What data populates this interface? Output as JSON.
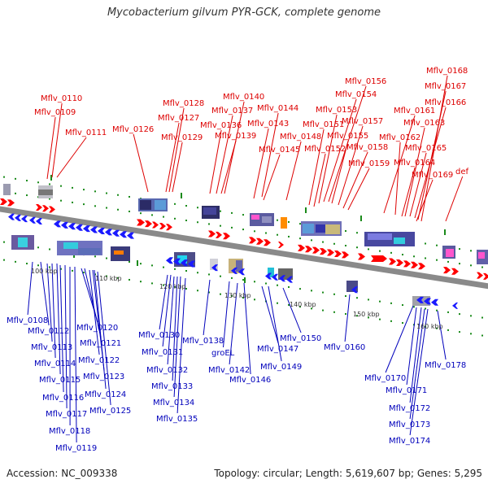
{
  "title": "Mycobacterium gilvum PYR-GCK, complete genome",
  "accession_label": "Accession: NC_009338",
  "summary": "Topology: circular; Length: 5,619,607 bp; Genes: 5,295",
  "colors": {
    "forward_label": "#dd0000",
    "reverse_label": "#0000bb",
    "forward_gene": "#ff0000",
    "reverse_gene": "#1a1aff",
    "backbone": "#8a8a8a",
    "tick": "#1a8a1a"
  },
  "kbp_ticks": [
    "100 kbp",
    "110 kbp",
    "120 kbp",
    "130 kbp",
    "140 kbp",
    "150 kbp",
    "160 kbp"
  ],
  "top_labels": [
    "Mflv_0110",
    "Mflv_0109",
    "Mflv_0111",
    "Mflv_0126",
    "Mflv_0128",
    "Mflv_0127",
    "Mflv_0129",
    "Mflv_0140",
    "Mflv_0137",
    "Mflv_0136",
    "Mflv_0139",
    "Mflv_0144",
    "Mflv_0143",
    "Mflv_0145",
    "Mflv_0148",
    "Mflv_0156",
    "Mflv_0154",
    "Mflv_0153",
    "Mflv_0151",
    "Mflv_0155",
    "Mflv_0157",
    "Mflv_0152",
    "Mflv_0158",
    "Mflv_0159",
    "Mflv_0161",
    "Mflv_0162",
    "Mflv_0163",
    "Mflv_0164",
    "Mflv_0165",
    "Mflv_0166",
    "Mflv_0167",
    "Mflv_0168",
    "Mflv_0169",
    "def"
  ],
  "bottom_labels": [
    "Mflv_0108",
    "Mflv_0112",
    "Mflv_0113",
    "Mflv_0114",
    "Mflv_0115",
    "Mflv_0116",
    "Mflv_0117",
    "Mflv_0118",
    "Mflv_0119",
    "Mflv_0120",
    "Mflv_0121",
    "Mflv_0122",
    "Mflv_0123",
    "Mflv_0124",
    "Mflv_0125",
    "Mflv_0130",
    "Mflv_0131",
    "Mflv_0132",
    "Mflv_0133",
    "Mflv_0134",
    "Mflv_0135",
    "Mflv_0138",
    "groEL",
    "Mflv_0142",
    "Mflv_0146",
    "Mflv_0147",
    "Mflv_0149",
    "Mflv_0150",
    "Mflv_0160",
    "Mflv_0170",
    "Mflv_0171",
    "Mflv_0172",
    "Mflv_0173",
    "Mflv_0174",
    "Mflv_0178"
  ]
}
